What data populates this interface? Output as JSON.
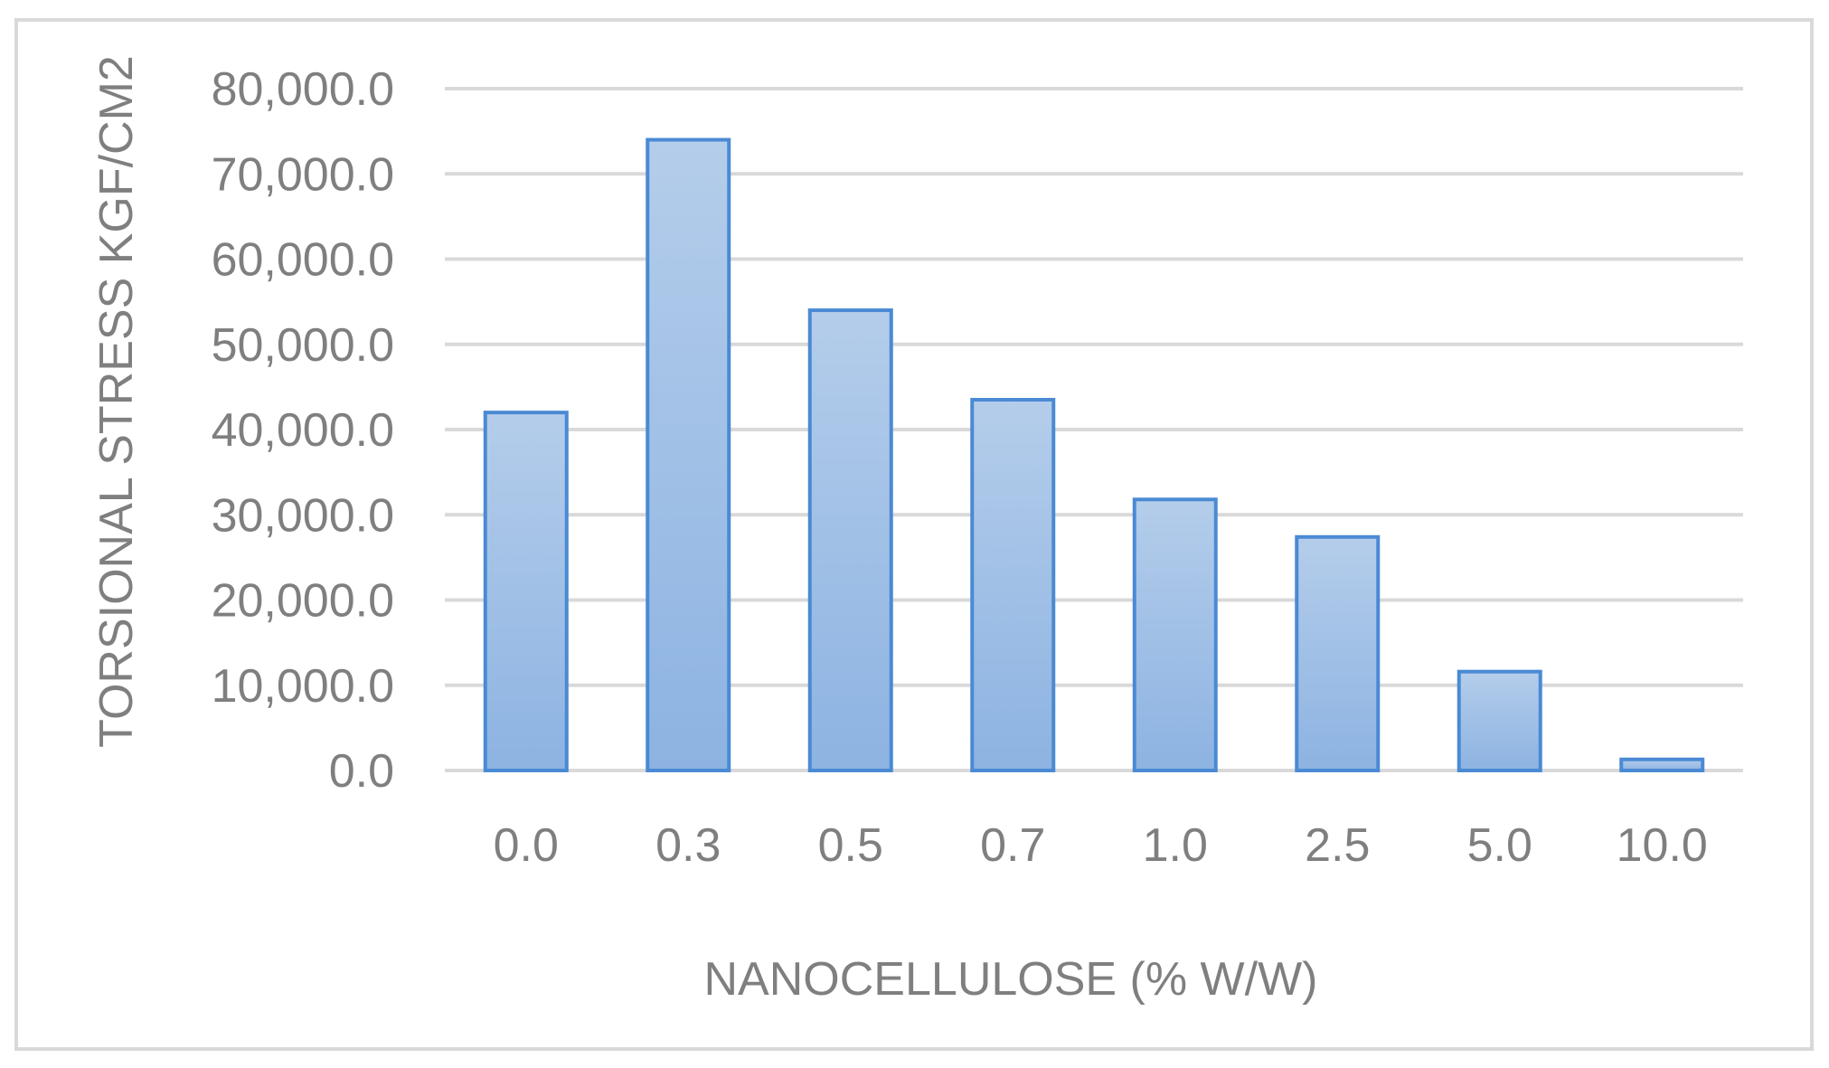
{
  "chart_data": {
    "type": "bar",
    "title": "",
    "xlabel": "NANOCELLULOSE (% W/W)",
    "ylabel": "TORSIONAL STRESS KGF/CM2",
    "categories": [
      "0.0",
      "0.3",
      "0.5",
      "0.7",
      "1.0",
      "2.5",
      "5.0",
      "10.0"
    ],
    "values": [
      42000,
      74000,
      54000,
      43500,
      31800,
      27400,
      11600,
      1300
    ],
    "ylim": [
      0,
      80000
    ],
    "yticks": [
      0,
      10000,
      20000,
      30000,
      40000,
      50000,
      60000,
      70000,
      80000
    ],
    "ytick_labels": [
      "0.0",
      "10,000.0",
      "20,000.0",
      "30,000.0",
      "40,000.0",
      "50,000.0",
      "60,000.0",
      "70,000.0",
      "80,000.0"
    ],
    "grid": true,
    "legend": "none",
    "colors": {
      "bar_fill_top": "#b4cdea",
      "bar_fill_bottom": "#8db3e2",
      "bar_stroke": "#4a8ad4",
      "gridline": "#d9d9d9",
      "text": "#7f7f7f"
    }
  }
}
